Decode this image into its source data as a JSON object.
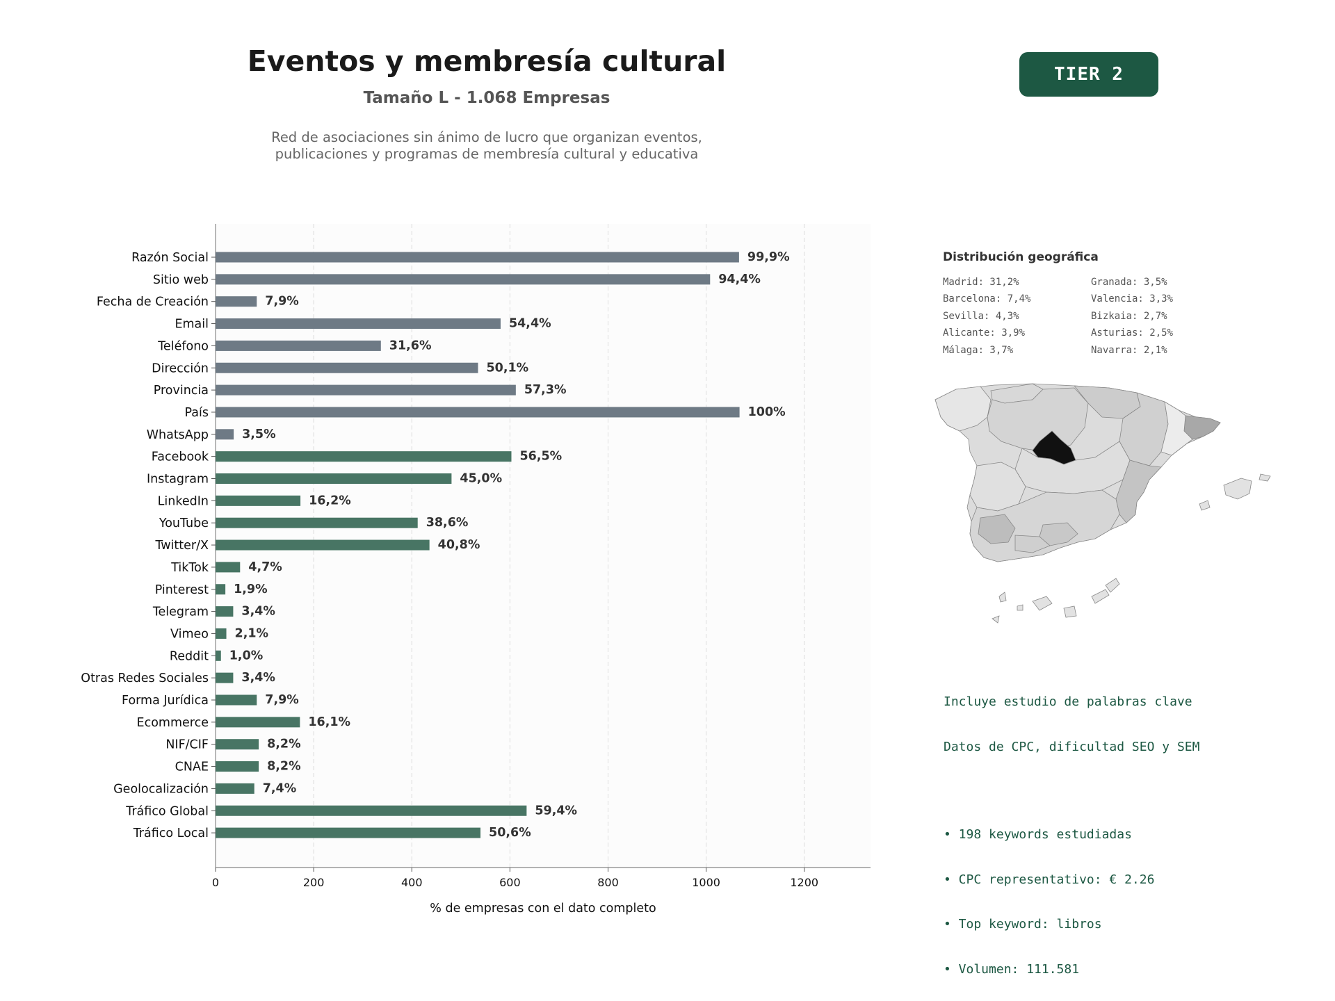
{
  "header": {
    "title": "Eventos y membresía cultural",
    "subtitle": "Tamaño L - 1.068 Empresas",
    "description_lines": [
      "Red de asociaciones sin ánimo de lucro que organizan eventos,",
      "publicaciones y programas de membresía cultural y educativa"
    ],
    "badge": "TIER 2"
  },
  "colors": {
    "badge_bg": "#1d5843",
    "bar_gray": "#6e7a85",
    "bar_green": "#487564",
    "text_green": "#1d5843",
    "highlight_region": "#111111"
  },
  "chart_data": {
    "type": "bar",
    "orientation": "horizontal",
    "categories": [
      "Razón Social",
      "Sitio web",
      "Fecha de Creación",
      "Email",
      "Teléfono",
      "Dirección",
      "Provincia",
      "País",
      "WhatsApp",
      "Facebook",
      "Instagram",
      "LinkedIn",
      "YouTube",
      "Twitter/X",
      "TikTok",
      "Pinterest",
      "Telegram",
      "Vimeo",
      "Reddit",
      "Otras Redes Sociales",
      "Forma Jurídica",
      "Ecommerce",
      "NIF/CIF",
      "CNAE",
      "Geolocalización",
      "Tráfico Global",
      "Tráfico Local"
    ],
    "values": [
      1067,
      1008,
      84,
      581,
      337,
      535,
      612,
      1068,
      37,
      603,
      481,
      173,
      412,
      436,
      50,
      20,
      36,
      22,
      11,
      36,
      84,
      172,
      88,
      88,
      79,
      634,
      540
    ],
    "data_labels": [
      "99,9%",
      "94,4%",
      "7,9%",
      "54,4%",
      "31,6%",
      "50,1%",
      "57,3%",
      "100%",
      "3,5%",
      "56,5%",
      "45,0%",
      "16,2%",
      "38,6%",
      "40,8%",
      "4,7%",
      "1,9%",
      "3,4%",
      "2,1%",
      "1,0%",
      "3,4%",
      "7,9%",
      "16,1%",
      "8,2%",
      "8,2%",
      "7,4%",
      "59,4%",
      "50,6%"
    ],
    "group": [
      "gray",
      "gray",
      "gray",
      "gray",
      "gray",
      "gray",
      "gray",
      "gray",
      "gray",
      "green",
      "green",
      "green",
      "green",
      "green",
      "green",
      "green",
      "green",
      "green",
      "green",
      "green",
      "green",
      "green",
      "green",
      "green",
      "green",
      "green",
      "green"
    ],
    "xlabel": "% de empresas con el dato completo",
    "xlim": [
      0,
      1335
    ],
    "xticks": [
      0,
      200,
      400,
      600,
      800,
      1000,
      1200
    ],
    "grid": "vertical dashed"
  },
  "geo": {
    "title": "Distribución geográfica",
    "entries": [
      "Madrid: 31,2%",
      "Granada: 3,5%",
      "Barcelona: 7,4%",
      "Valencia: 3,3%",
      "Sevilla: 4,3%",
      "Bizkaia: 2,7%",
      "Alicante: 3,9%",
      "Asturias: 2,5%",
      "Málaga: 3,7%",
      "Navarra: 2,1%"
    ]
  },
  "keywords": {
    "lines": [
      "Incluye estudio de palabras clave",
      "Datos de CPC, dificultad SEO y SEM"
    ],
    "bullets": [
      "• 198 keywords estudiadas",
      "• CPC representativo: € 2.26",
      "• Top keyword: libros",
      "• Volumen: 111.581"
    ]
  }
}
